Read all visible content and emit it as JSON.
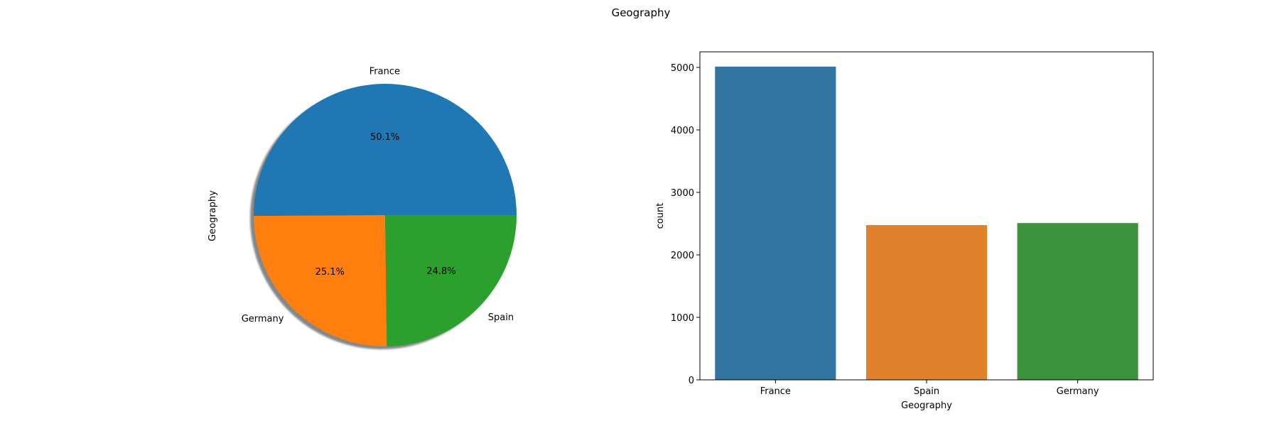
{
  "figure": {
    "suptitle": "Geography"
  },
  "chart_data": [
    {
      "type": "pie",
      "categories": [
        "France",
        "Germany",
        "Spain"
      ],
      "values": [
        50.1,
        25.1,
        24.8
      ],
      "labels": [
        "50.1%",
        "25.1%",
        "24.8%"
      ],
      "colors": [
        "#1f77b4",
        "#ff7f0e",
        "#2ca02c"
      ],
      "ylabel": "Geography",
      "shadow": true
    },
    {
      "type": "bar",
      "categories": [
        "France",
        "Spain",
        "Germany"
      ],
      "values": [
        5014,
        2477,
        2509
      ],
      "colors": [
        "#3274a1",
        "#e1812c",
        "#3a923a"
      ],
      "xlabel": "Geography",
      "ylabel": "count",
      "ylim": [
        0,
        5250
      ],
      "yticks": [
        0,
        1000,
        2000,
        3000,
        4000,
        5000
      ],
      "grid": false
    }
  ]
}
